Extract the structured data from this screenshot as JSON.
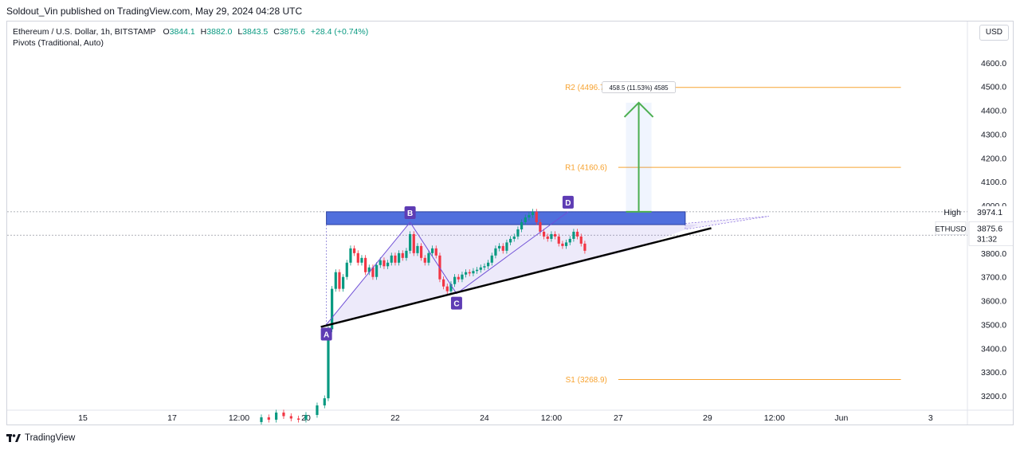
{
  "attribution": "Soldout_Vin published on TradingView.com, May 29, 2024 04:28 UTC",
  "legend": {
    "symbol_line": "Ethereum / U.S. Dollar, 1h, BITSTAMP",
    "open_key": "O",
    "open": "3844.1",
    "high_key": "H",
    "high": "3882.0",
    "low_key": "L",
    "low": "3843.5",
    "close_key": "C",
    "close": "3875.6",
    "change": "+28.4 (+0.74%)",
    "indicator": "Pivots (Traditional, Auto)"
  },
  "currency_button": "USD",
  "footer": {
    "brand": "TradingView"
  },
  "colors": {
    "up": "#089981",
    "down": "#f23645",
    "pivot": "#f7a331",
    "zone": "#3d5fd9",
    "pattern": "#6f4fd6",
    "label": "#5e3cb4",
    "target": "#4caf50",
    "trendline": "#000000"
  },
  "chart_data": {
    "type": "line",
    "symbol": "ETHUSD",
    "ylim": [
      3140,
      4700
    ],
    "y_ticks": [
      3200,
      3300,
      3400,
      3500,
      3600,
      3700,
      3800,
      3900,
      4000,
      4100,
      4200,
      4300,
      4400,
      4500,
      4600
    ],
    "y_tick_labels": [
      "3200.0",
      "3300.0",
      "3400.0",
      "3500.0",
      "3600.0",
      "3700.0",
      "3800.0",
      "3900.0",
      "4000.0",
      "4100.0",
      "4200.0",
      "4300.0",
      "4400.0",
      "4500.0",
      "4600.0"
    ],
    "x_ticks": [
      "15",
      "17",
      "12:00",
      "20",
      "22",
      "24",
      "12:00",
      "27",
      "29",
      "12:00",
      "Jun",
      "3"
    ],
    "x_tick_hours": [
      0,
      48,
      84,
      120,
      168,
      216,
      252,
      288,
      336,
      372,
      408,
      456
    ],
    "price_series": {
      "name": "ETHUSD",
      "hours": [
        92,
        96,
        100,
        104,
        108,
        112,
        116,
        120,
        126,
        130,
        132,
        134,
        136,
        138,
        140,
        142,
        144,
        146,
        148,
        150,
        152,
        154,
        156,
        158,
        160,
        162,
        164,
        166,
        168,
        170,
        172,
        174,
        176,
        178,
        180,
        182,
        184,
        186,
        188,
        190,
        192,
        194,
        196,
        198,
        200,
        202,
        204,
        206,
        208,
        210,
        212,
        214,
        216,
        218,
        220,
        222,
        224,
        226,
        228,
        230,
        232,
        234,
        236,
        238,
        240,
        242,
        244,
        246,
        248,
        250,
        252,
        254,
        256,
        258,
        260,
        262,
        264,
        266,
        268,
        270,
        272,
        274,
        276,
        278,
        280,
        282,
        284,
        286,
        288,
        290,
        292,
        294,
        296,
        298,
        300,
        302,
        304,
        306,
        308,
        310,
        312
      ],
      "close": [
        3090,
        3110,
        3100,
        3130,
        3115,
        3105,
        3100,
        3120,
        3160,
        3190,
        3480,
        3650,
        3720,
        3650,
        3700,
        3760,
        3820,
        3800,
        3760,
        3780,
        3720,
        3740,
        3700,
        3750,
        3770,
        3745,
        3760,
        3790,
        3760,
        3800,
        3780,
        3810,
        3880,
        3800,
        3830,
        3780,
        3760,
        3800,
        3820,
        3790,
        3690,
        3660,
        3640,
        3670,
        3700,
        3690,
        3710,
        3720,
        3715,
        3725,
        3730,
        3740,
        3745,
        3760,
        3790,
        3820,
        3830,
        3810,
        3845,
        3860,
        3870,
        3900,
        3930,
        3950,
        3960,
        3974,
        3930,
        3890,
        3870,
        3860,
        3880,
        3870,
        3840,
        3830,
        3845,
        3860,
        3890,
        3870,
        3840,
        3810,
        3800,
        3820,
        3830,
        3845,
        3850,
        3876,
        3876,
        3876,
        3876,
        3876,
        3876,
        3876,
        3876,
        3876,
        3876,
        3876,
        3876,
        3876,
        3876,
        3876,
        3876
      ]
    },
    "last_bar_hour": 271,
    "resistance_zone": {
      "low": 3920,
      "high": 3974,
      "start_hour": 131,
      "end_hour": 324
    },
    "trendline": {
      "x1": 128,
      "y1": 3490,
      "x2": 338,
      "y2": 3905
    },
    "triangle": {
      "points": [
        [
          131,
          3500
        ],
        [
          176,
          3930
        ],
        [
          331,
          3920
        ],
        [
          294,
          3810
        ]
      ]
    },
    "pattern_points": [
      {
        "label": "A",
        "hour": 131,
        "price": 3500
      },
      {
        "label": "B",
        "hour": 176,
        "price": 3930
      },
      {
        "label": "C",
        "hour": 201,
        "price": 3630
      },
      {
        "label": "D",
        "hour": 261,
        "price": 3974
      }
    ],
    "pivots": [
      {
        "label": "R2 (4496.7)",
        "value": 4496.7
      },
      {
        "label": "R1 (4160.6)",
        "value": 4160.6
      },
      {
        "label": "S1 (3268.9)",
        "value": 3268.9
      }
    ],
    "pivot_start_hour": 288,
    "pivot_end_hour": 440,
    "target": {
      "from": 3974,
      "to": 4432.5,
      "hour": 299,
      "label": "458.5 (11.53%) 4585"
    },
    "high_line": {
      "label": "High",
      "value": 3974.1,
      "value_label": "3974.1"
    },
    "last_price": {
      "symbol": "ETHUSD",
      "value": 3875.6,
      "value_label": "3875.6",
      "countdown": "31:32"
    }
  }
}
